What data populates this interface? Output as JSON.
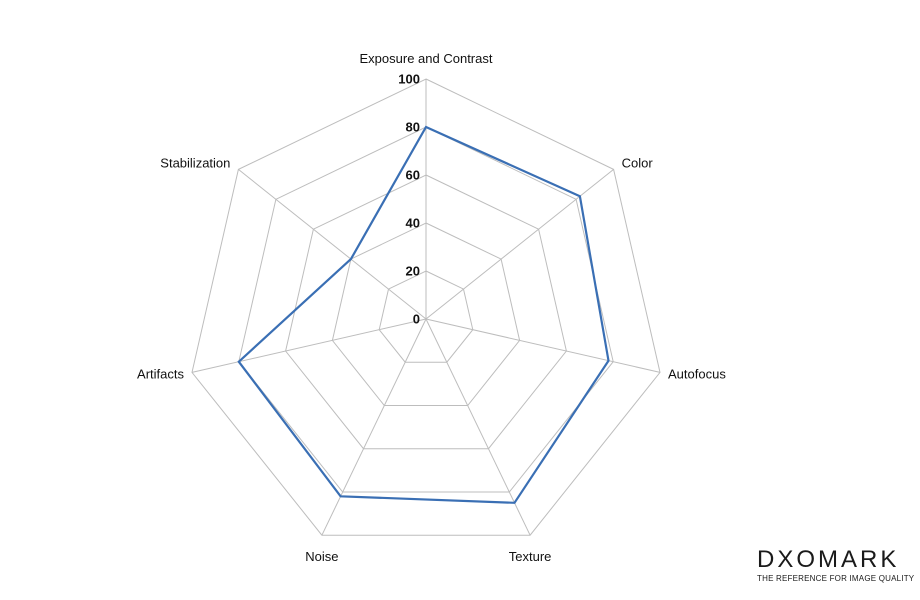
{
  "chart_data": {
    "type": "radar",
    "axes": [
      "Exposure and Contrast",
      "Color",
      "Autofocus",
      "Texture",
      "Noise",
      "Artifacts",
      "Stabilization"
    ],
    "ticks": [
      0,
      20,
      40,
      60,
      80,
      100
    ],
    "rlim": [
      0,
      100
    ],
    "grid": true,
    "series": [
      {
        "values": [
          80,
          82,
          78,
          85,
          82,
          80,
          40
        ],
        "color": "#3a6fb4"
      }
    ]
  },
  "brand": {
    "name": "DXOMARK",
    "tagline": "THE REFERENCE FOR IMAGE QUALITY"
  }
}
